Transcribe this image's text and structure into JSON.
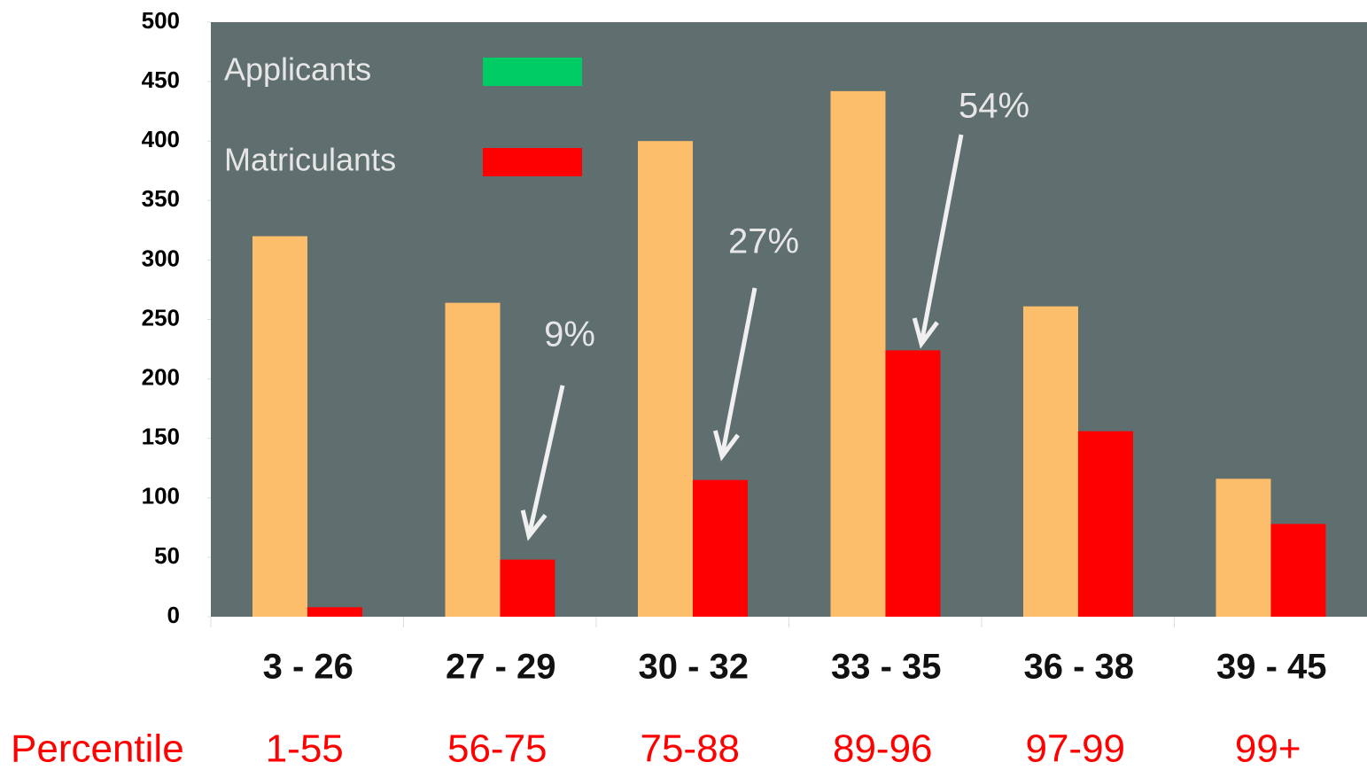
{
  "chart_data": {
    "type": "bar",
    "categories": [
      "3 - 26",
      "27 - 29",
      "30 - 32",
      "33 - 35",
      "36 - 38",
      "39 - 45"
    ],
    "series": [
      {
        "name": "Applicants",
        "color": "#fdbe6b",
        "legend_color": "#00cc66",
        "values": [
          320,
          264,
          400,
          442,
          261,
          116
        ]
      },
      {
        "name": "Matriculants",
        "color": "#ff0000",
        "legend_color": "#ff0000",
        "values": [
          8,
          48,
          115,
          224,
          156,
          78
        ]
      }
    ],
    "ylim": [
      0,
      500
    ],
    "yticks": [
      0,
      50,
      100,
      150,
      200,
      250,
      300,
      350,
      400,
      450,
      500
    ],
    "annotations": [
      "9%",
      "27%",
      "54%"
    ],
    "percentile_label": "Percentile",
    "percentiles": [
      "1-55",
      "56-75",
      "75-88",
      "89-96",
      "97-99",
      "99+"
    ],
    "plot_background": "#5f6e6f"
  }
}
